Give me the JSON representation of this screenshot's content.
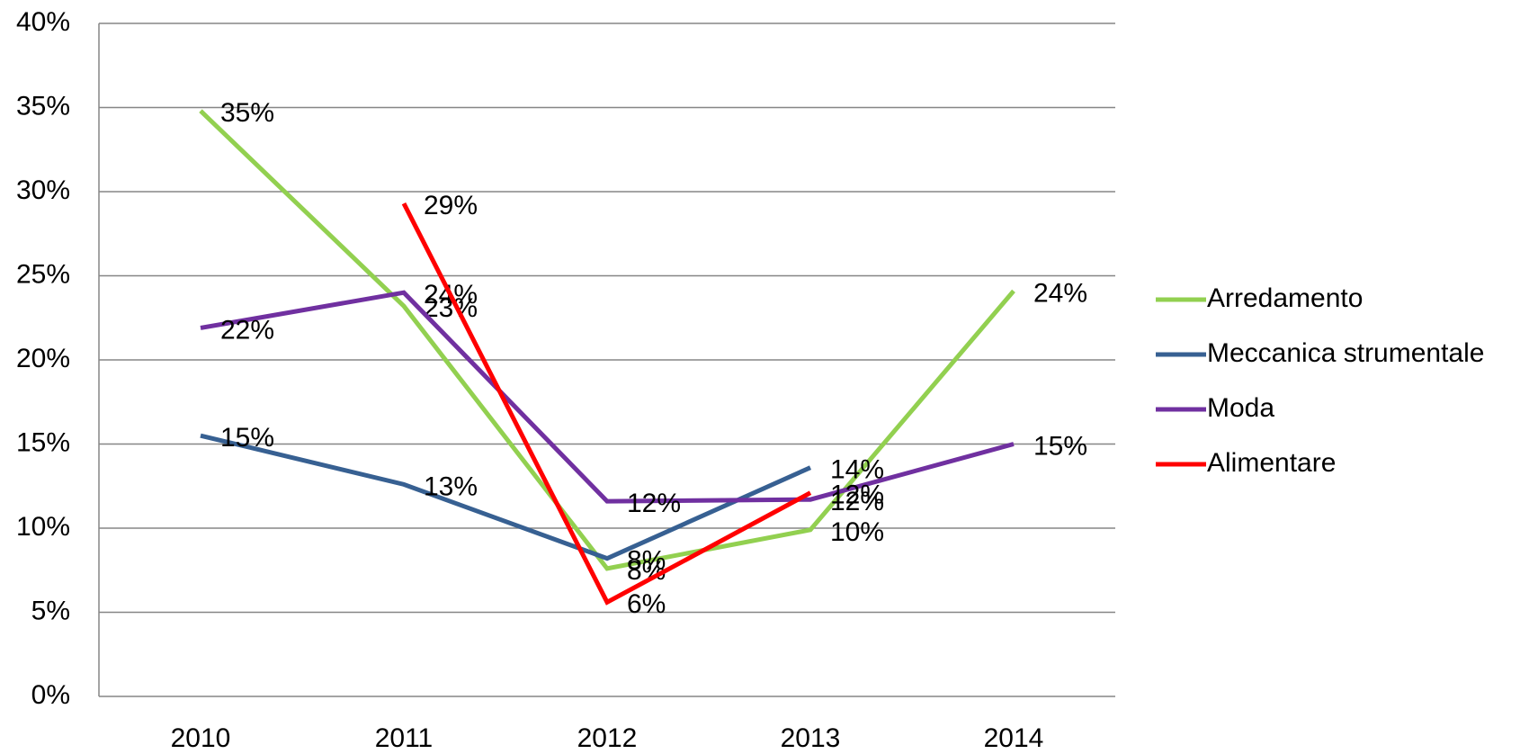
{
  "chart_data": {
    "type": "line",
    "categories": [
      "2010",
      "2011",
      "2012",
      "2013",
      "2014"
    ],
    "ylim": [
      0,
      40
    ],
    "yticks": [
      {
        "value": 0,
        "label": "0%"
      },
      {
        "value": 5,
        "label": "5%"
      },
      {
        "value": 10,
        "label": "10%"
      },
      {
        "value": 15,
        "label": "15%"
      },
      {
        "value": 20,
        "label": "20%"
      },
      {
        "value": 25,
        "label": "25%"
      },
      {
        "value": 30,
        "label": "30%"
      },
      {
        "value": 35,
        "label": "35%"
      },
      {
        "value": 40,
        "label": "40%"
      }
    ],
    "grid": true,
    "legend": "right",
    "series": [
      {
        "name": "Arredamento",
        "color": "#92d050",
        "values": [
          34.8,
          23.2,
          7.6,
          9.9,
          24.1
        ],
        "value_labels": [
          "35%",
          "23%",
          "8%",
          "10%",
          "24%"
        ]
      },
      {
        "name": "Meccanica strumentale",
        "color": "#376092",
        "values": [
          15.5,
          12.6,
          8.2,
          13.6,
          null
        ],
        "value_labels": [
          "15%",
          "13%",
          "8%",
          "14%",
          null
        ]
      },
      {
        "name": "Moda",
        "color": "#7030a0",
        "values": [
          21.9,
          24.0,
          11.6,
          11.7,
          15.0
        ],
        "value_labels": [
          "22%",
          "24%",
          "12%",
          "12%",
          "15%"
        ]
      },
      {
        "name": "Alimentare",
        "color": "#ff0000",
        "values": [
          null,
          29.3,
          5.6,
          12.1,
          null
        ],
        "value_labels": [
          null,
          "29%",
          "6%",
          "12%",
          null
        ]
      }
    ]
  }
}
